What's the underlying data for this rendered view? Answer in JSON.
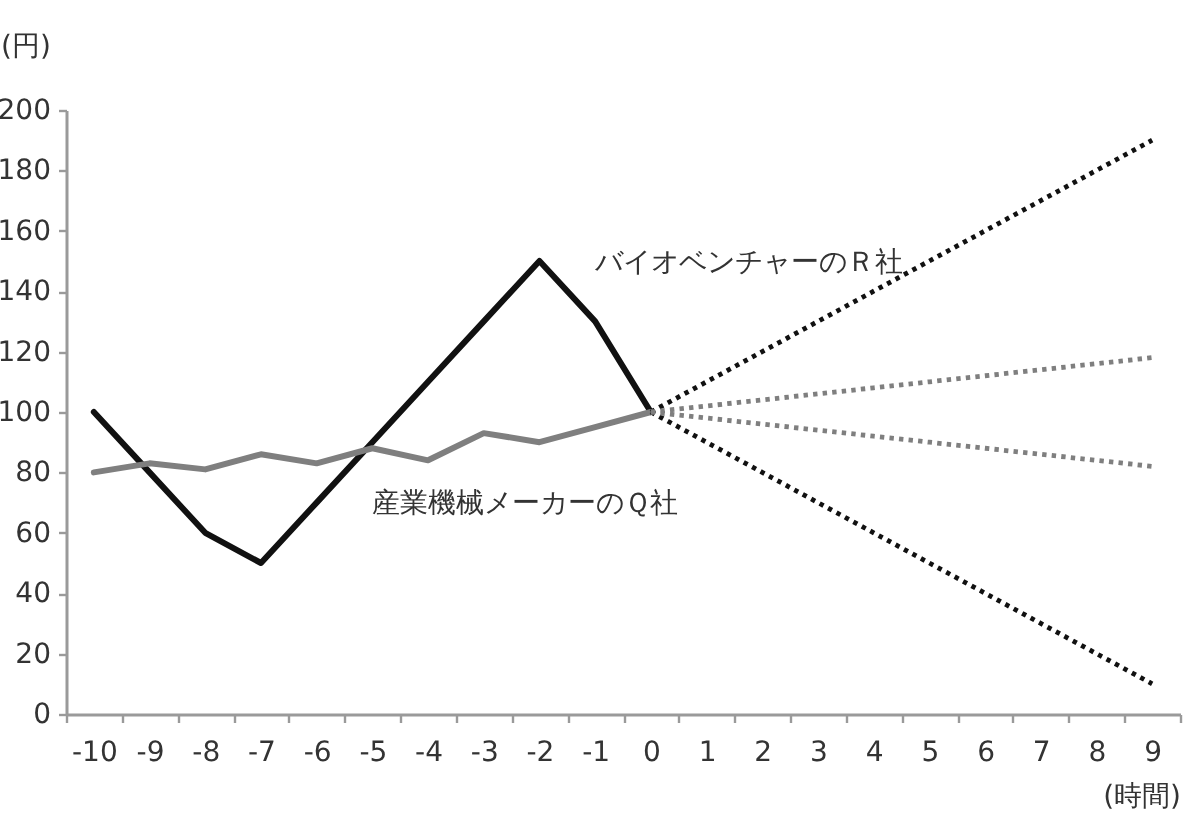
{
  "chart_data": {
    "type": "line",
    "xlabel": "(時間)",
    "ylabel": "(円)",
    "categories": [
      "-10",
      "-9",
      "-8",
      "-7",
      "-6",
      "-5",
      "-4",
      "-3",
      "-2",
      "-1",
      "0",
      "1",
      "2",
      "3",
      "4",
      "5",
      "6",
      "7",
      "8",
      "9"
    ],
    "ylim": [
      0,
      200
    ],
    "yticks": [
      0,
      20,
      40,
      60,
      80,
      100,
      120,
      140,
      160,
      180,
      200
    ],
    "grid": false,
    "series": [
      {
        "name": "バイオベンチャーのＲ社",
        "color": "#111111",
        "line_style": "solid",
        "values": [
          100,
          80,
          60,
          50,
          70,
          90,
          110,
          130,
          150,
          130,
          100,
          null,
          null,
          null,
          null,
          null,
          null,
          null,
          null,
          null
        ]
      },
      {
        "name": "産業機械メーカーのＱ社",
        "color": "#7f7f7f",
        "line_style": "solid",
        "values": [
          80,
          83,
          81,
          86,
          83,
          88,
          84,
          93,
          90,
          95,
          100,
          null,
          null,
          null,
          null,
          null,
          null,
          null,
          null,
          null
        ]
      },
      {
        "color": "#111111",
        "line_style": "dotted",
        "values": [
          null,
          null,
          null,
          null,
          null,
          null,
          null,
          null,
          null,
          null,
          100,
          110,
          120,
          130,
          140,
          150,
          160,
          170,
          180,
          190
        ]
      },
      {
        "color": "#111111",
        "line_style": "dotted",
        "values": [
          null,
          null,
          null,
          null,
          null,
          null,
          null,
          null,
          null,
          null,
          100,
          90,
          80,
          70,
          60,
          50,
          40,
          30,
          20,
          10
        ]
      },
      {
        "color": "#7f7f7f",
        "line_style": "dotted",
        "values": [
          null,
          null,
          null,
          null,
          null,
          null,
          null,
          null,
          null,
          null,
          100,
          102,
          104,
          106,
          108,
          110,
          112,
          114,
          116,
          118
        ]
      },
      {
        "color": "#7f7f7f",
        "line_style": "dotted",
        "values": [
          null,
          null,
          null,
          null,
          null,
          null,
          null,
          null,
          null,
          null,
          100,
          98,
          96,
          94,
          92,
          90,
          88,
          86,
          84,
          82
        ]
      }
    ]
  }
}
